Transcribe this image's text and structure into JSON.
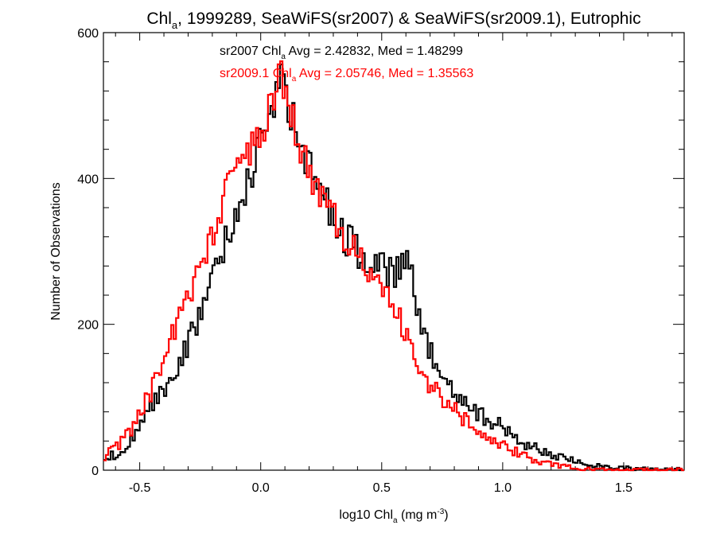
{
  "chart_data": {
    "type": "line",
    "title": {
      "pre": "Chl",
      "sub": "a",
      "post": ", 1999289, SeaWiFS(sr2007) & SeaWiFS(sr2009.1), Eutrophic"
    },
    "xlabel": {
      "pre": "log10 Chl",
      "sub": "a",
      "mid": " (mg m",
      "sup": "-3",
      "post": ")"
    },
    "ylabel": "Number of Observations",
    "xlim": [
      -0.65,
      1.75
    ],
    "ylim": [
      0,
      600
    ],
    "xticks": [
      -0.5,
      0.0,
      0.5,
      1.0,
      1.5
    ],
    "xtick_labels": [
      "-0.5",
      "0.0",
      "0.5",
      "1.0",
      "1.5"
    ],
    "yticks": [
      0,
      200,
      400,
      600
    ],
    "ytick_labels": [
      "0",
      "200",
      "400",
      "600"
    ],
    "step": "histogram",
    "bin_width": 0.01,
    "series": [
      {
        "name": "sr2007",
        "color": "#000000",
        "annotation": {
          "pre": "sr2007 Chl",
          "sub": "a",
          "post": " Avg = 2.42832, Med = 1.48299"
        },
        "x": [
          -0.65,
          -0.6,
          -0.55,
          -0.5,
          -0.45,
          -0.4,
          -0.35,
          -0.3,
          -0.25,
          -0.2,
          -0.15,
          -0.1,
          -0.05,
          0.0,
          0.05,
          0.08,
          0.1,
          0.15,
          0.2,
          0.25,
          0.3,
          0.35,
          0.4,
          0.45,
          0.5,
          0.55,
          0.6,
          0.62,
          0.65,
          0.7,
          0.75,
          0.8,
          0.85,
          0.9,
          0.95,
          1.0,
          1.05,
          1.1,
          1.15,
          1.2,
          1.25,
          1.3,
          1.35,
          1.4,
          1.45,
          1.5,
          1.55,
          1.6,
          1.65,
          1.7,
          1.75
        ],
        "y": [
          15,
          22,
          35,
          55,
          85,
          110,
          140,
          175,
          215,
          260,
          310,
          355,
          405,
          445,
          495,
          540,
          515,
          465,
          415,
          380,
          350,
          320,
          300,
          285,
          275,
          270,
          280,
          270,
          210,
          160,
          128,
          110,
          95,
          78,
          68,
          58,
          45,
          35,
          28,
          22,
          16,
          12,
          8,
          6,
          4,
          3,
          2,
          1,
          1,
          1,
          0
        ]
      },
      {
        "name": "sr2009.1",
        "color": "#ff0000",
        "annotation": {
          "pre": "sr2009.1 Chl",
          "sub": "a",
          "post": " Avg = 2.05746, Med = 1.35563"
        },
        "x": [
          -0.65,
          -0.6,
          -0.55,
          -0.5,
          -0.45,
          -0.4,
          -0.35,
          -0.3,
          -0.25,
          -0.2,
          -0.15,
          -0.1,
          -0.05,
          0.0,
          0.05,
          0.08,
          0.1,
          0.15,
          0.2,
          0.25,
          0.3,
          0.35,
          0.4,
          0.45,
          0.5,
          0.55,
          0.6,
          0.62,
          0.65,
          0.7,
          0.75,
          0.8,
          0.85,
          0.9,
          0.95,
          1.0,
          1.05,
          1.1,
          1.15,
          1.2,
          1.25,
          1.3,
          1.35,
          1.4,
          1.45,
          1.5,
          1.55,
          1.6,
          1.65,
          1.7,
          1.75
        ],
        "y": [
          18,
          30,
          48,
          75,
          110,
          150,
          195,
          240,
          280,
          320,
          375,
          410,
          440,
          470,
          500,
          545,
          510,
          455,
          410,
          375,
          345,
          315,
          295,
          280,
          255,
          225,
          185,
          165,
          140,
          120,
          100,
          82,
          68,
          56,
          45,
          35,
          25,
          18,
          12,
          8,
          5,
          3,
          2,
          1,
          0,
          0,
          0,
          0,
          0,
          0,
          0
        ]
      }
    ]
  }
}
